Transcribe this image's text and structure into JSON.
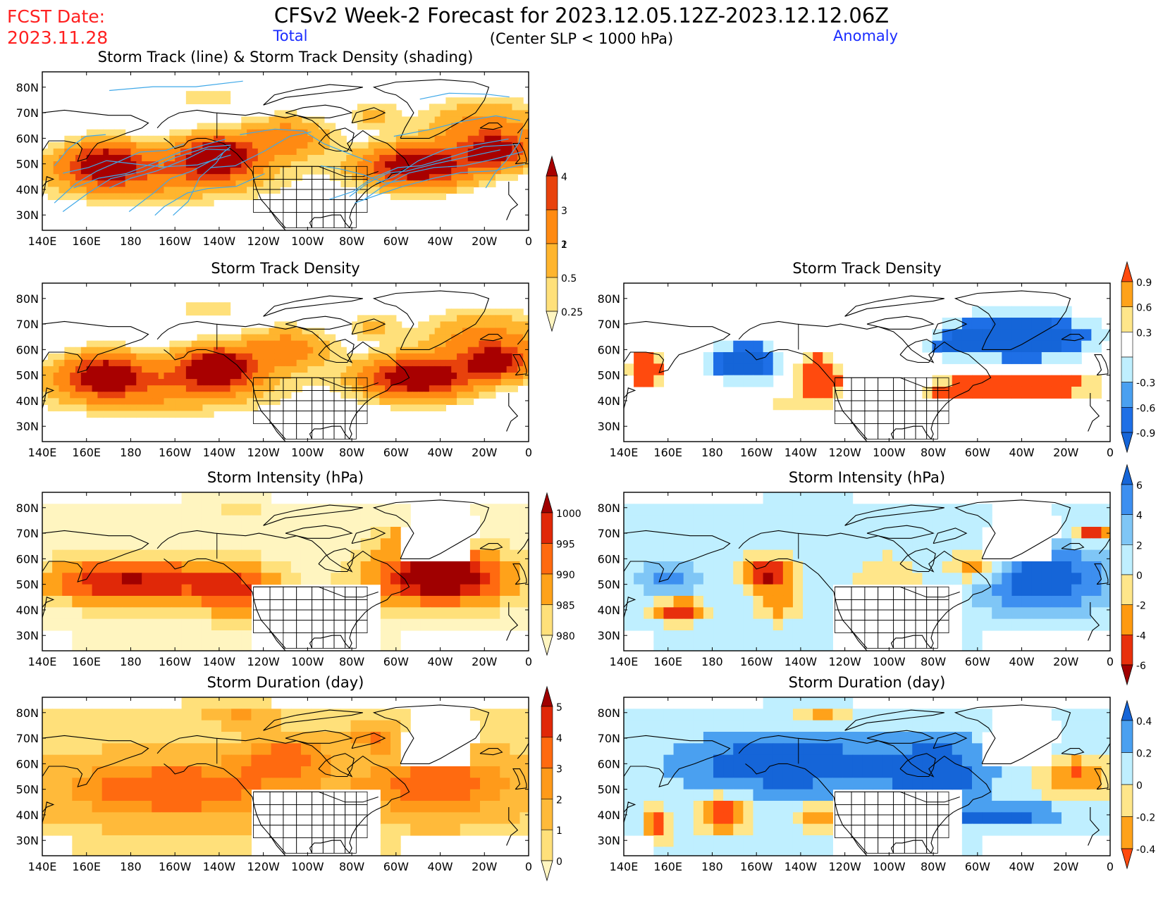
{
  "header": {
    "fcst_label": "FCST Date:",
    "fcst_date": "2023.11.28",
    "title": "CFSv2 Week-2 Forecast for 2023.12.05.12Z-2023.12.12.06Z",
    "subtitle": "(Center SLP < 1000 hPa)",
    "total_label": "Total",
    "anomaly_label": "Anomaly",
    "red": "#ff2020",
    "blue": "#1a2cff"
  },
  "axes": {
    "lon_ticks": [
      "140E",
      "160E",
      "180",
      "160W",
      "140W",
      "120W",
      "100W",
      "80W",
      "60W",
      "40W",
      "20W",
      "0"
    ],
    "lat_ticks": [
      "80N",
      "70N",
      "60N",
      "50N",
      "40N",
      "30N"
    ]
  },
  "panels": [
    {
      "id": "track",
      "title": "Storm Track (line) & Storm Track Density (shading)",
      "field": "density",
      "tracks": true
    },
    {
      "id": "density_total",
      "title": "Storm Track Density",
      "field": "density"
    },
    {
      "id": "density_anom",
      "title": "Storm Track Density",
      "field": "density_anom",
      "blocky": true
    },
    {
      "id": "intensity_total",
      "title": "Storm Intensity (hPa)",
      "field": "intensity",
      "blocky": true
    },
    {
      "id": "intensity_anom",
      "title": "Storm Intensity (hPa)",
      "field": "intensity_anom",
      "blocky": true
    },
    {
      "id": "duration_total",
      "title": "Storm Duration (day)",
      "field": "duration",
      "blocky": true
    },
    {
      "id": "duration_anom",
      "title": "Storm Duration (day)",
      "field": "duration_anom",
      "blocky": true
    }
  ],
  "colorbars": [
    {
      "id": "density",
      "labels": [
        "0.25",
        "0.5",
        "1",
        "2",
        "3",
        "4"
      ],
      "colors": [
        "#fff5c0",
        "#ffe07a",
        "#ffb52e",
        "#ff8a12",
        "#e8420c",
        "#a80000"
      ]
    },
    {
      "id": "density_anom",
      "labels": [
        "-0.9",
        "-0.6",
        "-0.3",
        "0.3",
        "0.6",
        "0.9"
      ],
      "colors": [
        "#1565d8",
        "#1e6fe6",
        "#4aa0f0",
        "#bfefff",
        "#ffffff",
        "#ffe68a",
        "#ffa21a",
        "#ff4a0e"
      ]
    },
    {
      "id": "intensity",
      "labels": [
        "1000",
        "995",
        "990",
        "985",
        "980"
      ],
      "colors": [
        "#fff5c0",
        "#ffe07a",
        "#ffa21a",
        "#ff6a10",
        "#e02808",
        "#a00000"
      ]
    },
    {
      "id": "intensity_anom",
      "labels": [
        "6",
        "4",
        "2",
        "0",
        "-2",
        "-4",
        "-6"
      ],
      "colors": [
        "#a00000",
        "#e8300c",
        "#ff9a10",
        "#ffe68a",
        "#bfefff",
        "#7fc6f6",
        "#3d8ff0",
        "#1565d8"
      ]
    },
    {
      "id": "duration",
      "labels": [
        "0",
        "1",
        "2",
        "3",
        "4",
        "5"
      ],
      "colors": [
        "#fff5c0",
        "#ffe07a",
        "#ffba3a",
        "#ff9a1a",
        "#ff6a10",
        "#e02808",
        "#a00000"
      ]
    },
    {
      "id": "duration_anom",
      "labels": [
        "0.4",
        "0.2",
        "0",
        "-0.2",
        "-0.4"
      ],
      "colors": [
        "#ff4a0e",
        "#ffa21a",
        "#ffe68a",
        "#bfefff",
        "#4aa0f0",
        "#1565d8"
      ]
    }
  ]
}
